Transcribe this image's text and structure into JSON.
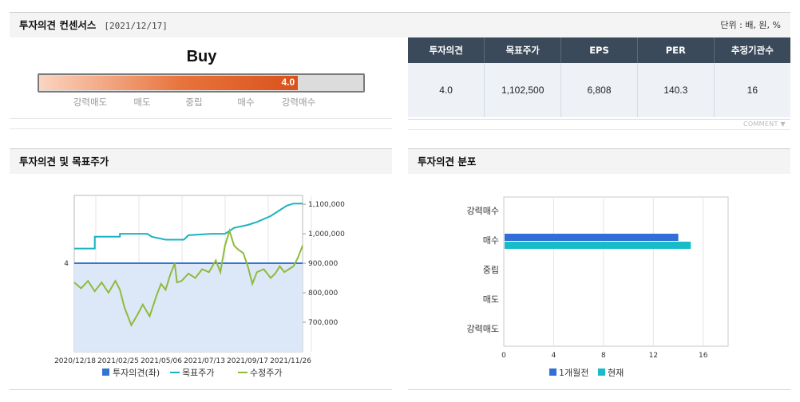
{
  "header": {
    "title": "투자의견 컨센서스",
    "date": "[2021/12/17]",
    "unit": "단위 : 배, 원, %"
  },
  "rating": {
    "label": "Buy",
    "value": "4.0",
    "score": 4.0,
    "max": 5,
    "scale": [
      "강력매도",
      "매도",
      "중립",
      "매수",
      "강력매수"
    ]
  },
  "table": {
    "headers": [
      "투자의견",
      "목표주가",
      "EPS",
      "PER",
      "추정기관수"
    ],
    "values": [
      "4.0",
      "1,102,500",
      "6,808",
      "140.3",
      "16"
    ]
  },
  "comment": "COMMENT",
  "colors": {
    "opinion": "#3574d0",
    "target": "#1bb3c1",
    "price": "#8fba3c",
    "prev_month": "#2f6fd6",
    "current": "#18bcc8"
  },
  "chart_data": [
    {
      "type": "line",
      "title": "투자의견 및 목표주가",
      "x_ticks": [
        "2020/12/18",
        "2021/02/25",
        "2021/05/06",
        "2021/07/13",
        "2021/09/17",
        "2021/11/26"
      ],
      "y_left_ticks": [
        "4"
      ],
      "y_right_ticks": [
        "1,100,000",
        "1,000,000",
        "900,000",
        "800,000",
        "700,000"
      ],
      "y_right_range": [
        600000,
        1130000
      ],
      "legend": [
        "투자의견(좌)",
        "목표주가",
        "수정주가"
      ],
      "legend_position": "bottom",
      "series": [
        {
          "name": "투자의견(좌)",
          "style": "area",
          "values": [
            [
              0,
              4.0
            ],
            [
              1,
              4.0
            ]
          ]
        },
        {
          "name": "목표주가",
          "style": "step",
          "values": [
            [
              0,
              950000
            ],
            [
              0.09,
              950000
            ],
            [
              0.09,
              990000
            ],
            [
              0.2,
              990000
            ],
            [
              0.2,
              1000000
            ],
            [
              0.32,
              1000000
            ],
            [
              0.34,
              990000
            ],
            [
              0.4,
              980000
            ],
            [
              0.48,
              980000
            ],
            [
              0.5,
              995000
            ],
            [
              0.6,
              1000000
            ],
            [
              0.66,
              1000000
            ],
            [
              0.7,
              1020000
            ],
            [
              0.76,
              1030000
            ],
            [
              0.8,
              1040000
            ],
            [
              0.86,
              1060000
            ],
            [
              0.9,
              1080000
            ],
            [
              0.93,
              1095000
            ],
            [
              0.96,
              1102500
            ],
            [
              1.0,
              1102500
            ]
          ]
        },
        {
          "name": "수정주가",
          "style": "line",
          "values": [
            [
              0,
              835000
            ],
            [
              0.03,
              815000
            ],
            [
              0.06,
              840000
            ],
            [
              0.09,
              805000
            ],
            [
              0.12,
              835000
            ],
            [
              0.15,
              800000
            ],
            [
              0.18,
              840000
            ],
            [
              0.2,
              810000
            ],
            [
              0.22,
              750000
            ],
            [
              0.25,
              690000
            ],
            [
              0.28,
              730000
            ],
            [
              0.3,
              760000
            ],
            [
              0.33,
              720000
            ],
            [
              0.36,
              790000
            ],
            [
              0.38,
              830000
            ],
            [
              0.4,
              810000
            ],
            [
              0.42,
              860000
            ],
            [
              0.44,
              900000
            ],
            [
              0.45,
              835000
            ],
            [
              0.47,
              840000
            ],
            [
              0.5,
              865000
            ],
            [
              0.53,
              850000
            ],
            [
              0.56,
              880000
            ],
            [
              0.59,
              870000
            ],
            [
              0.62,
              910000
            ],
            [
              0.64,
              870000
            ],
            [
              0.66,
              960000
            ],
            [
              0.68,
              1010000
            ],
            [
              0.7,
              960000
            ],
            [
              0.72,
              945000
            ],
            [
              0.74,
              935000
            ],
            [
              0.76,
              890000
            ],
            [
              0.78,
              830000
            ],
            [
              0.8,
              870000
            ],
            [
              0.83,
              880000
            ],
            [
              0.86,
              850000
            ],
            [
              0.88,
              865000
            ],
            [
              0.9,
              890000
            ],
            [
              0.92,
              870000
            ],
            [
              0.94,
              880000
            ],
            [
              0.96,
              890000
            ],
            [
              0.98,
              920000
            ],
            [
              1.0,
              960000
            ]
          ]
        }
      ]
    },
    {
      "type": "bar",
      "orientation": "horizontal",
      "title": "투자의견 분포",
      "categories": [
        "강력매수",
        "매수",
        "중립",
        "매도",
        "강력매도"
      ],
      "x_ticks": [
        "0",
        "4",
        "8",
        "12",
        "16"
      ],
      "xlim": [
        0,
        18
      ],
      "legend": [
        "1개월전",
        "현재"
      ],
      "legend_position": "bottom",
      "series": [
        {
          "name": "1개월전",
          "values": [
            0,
            14,
            0,
            0,
            0
          ]
        },
        {
          "name": "현재",
          "values": [
            0,
            15,
            0,
            0,
            0
          ]
        }
      ]
    }
  ]
}
